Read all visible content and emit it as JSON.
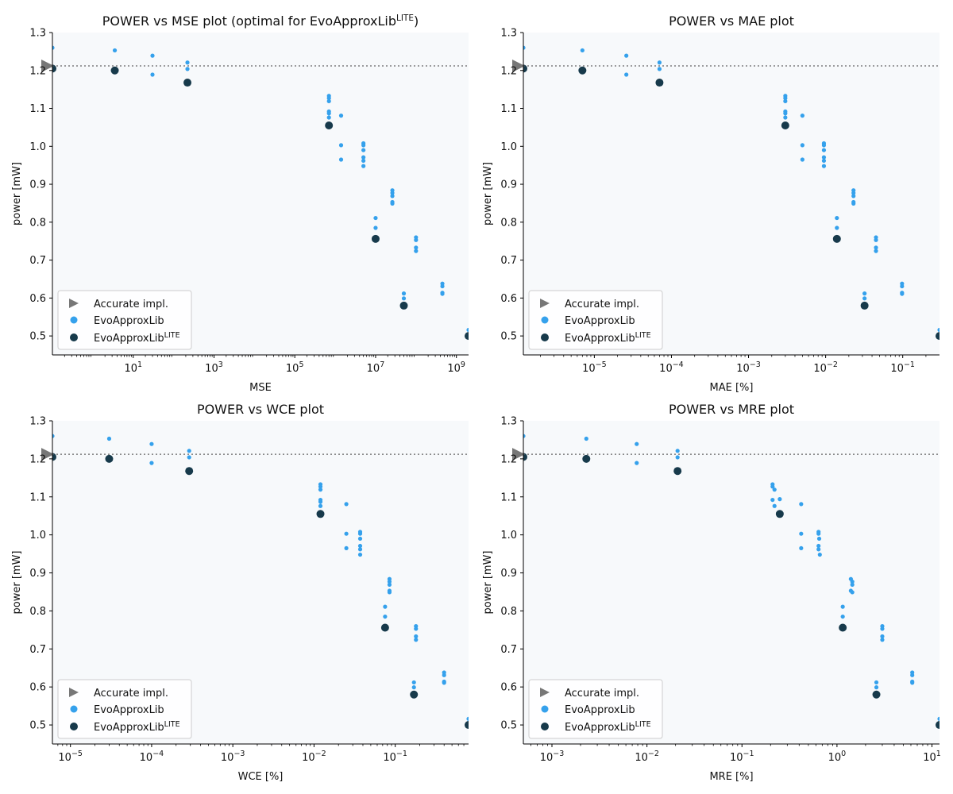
{
  "colors": {
    "panel_bg": "#f7f9fb",
    "evo": "#35a1ec",
    "lite": "#173a4b",
    "accurate": "#777777",
    "ref_line": "#666666",
    "legend_border": "#cccccc"
  },
  "legend": {
    "accurate": "Accurate impl.",
    "evo": "EvoApproxLib",
    "lite_base": "EvoApproxLib",
    "lite_sup": "LITE",
    "placement": "lower-left"
  },
  "chart_data": [
    {
      "type": "scatter",
      "title": "POWER vs MSE plot (optimal for EvoApproxLib",
      "title_sup": "LITE",
      "title_suffix": ")",
      "xlabel": "MSE",
      "ylabel": "power [mW]",
      "xscale": "log",
      "xlim": [
        0.1,
        2000000000.0
      ],
      "ylim": [
        0.45,
        1.3
      ],
      "xticks": [
        {
          "v": 10,
          "e": "1"
        },
        {
          "v": 1000,
          "e": "3"
        },
        {
          "v": 100000,
          "e": "5"
        },
        {
          "v": 10000000,
          "e": "7"
        },
        {
          "v": 1000000000,
          "e": "9"
        }
      ],
      "yticks": [
        {
          "v": 0.5,
          "t": "0.5"
        },
        {
          "v": 0.6,
          "t": "0.6"
        },
        {
          "v": 0.7,
          "t": "0.7"
        },
        {
          "v": 0.8,
          "t": "0.8"
        },
        {
          "v": 0.9,
          "t": "0.9"
        },
        {
          "v": 1.0,
          "t": "1.0"
        },
        {
          "v": 1.1,
          "t": "1.1"
        },
        {
          "v": 1.2,
          "t": "1.2"
        },
        {
          "v": 1.3,
          "t": "1.3"
        }
      ],
      "reference_power": 1.212,
      "accurate": [
        0.1,
        1.212
      ],
      "evo": [
        [
          0.1,
          1.26
        ],
        [
          3.5,
          1.253
        ],
        [
          30,
          1.239
        ],
        [
          30,
          1.189
        ],
        [
          220,
          1.221
        ],
        [
          220,
          1.204
        ],
        [
          700000.0,
          1.133
        ],
        [
          700000.0,
          1.127
        ],
        [
          700000.0,
          1.119
        ],
        [
          700000.0,
          1.092
        ],
        [
          700000.0,
          1.087
        ],
        [
          700000.0,
          1.076
        ],
        [
          1400000.0,
          1.081
        ],
        [
          1400000.0,
          1.003
        ],
        [
          1400000.0,
          0.965
        ],
        [
          5000000.0,
          1.008
        ],
        [
          5000000.0,
          1.003
        ],
        [
          5000000.0,
          0.99
        ],
        [
          5000000.0,
          0.971
        ],
        [
          5000000.0,
          0.962
        ],
        [
          5000000.0,
          0.948
        ],
        [
          26000000.0,
          0.884
        ],
        [
          26000000.0,
          0.877
        ],
        [
          26000000.0,
          0.869
        ],
        [
          26000000.0,
          0.853
        ],
        [
          26000000.0,
          0.849
        ],
        [
          10000000.0,
          0.811
        ],
        [
          10000000.0,
          0.785
        ],
        [
          100000000.0,
          0.76
        ],
        [
          100000000.0,
          0.753
        ],
        [
          100000000.0,
          0.733
        ],
        [
          100000000.0,
          0.724
        ],
        [
          50000000.0,
          0.612
        ],
        [
          50000000.0,
          0.599
        ],
        [
          450000000.0,
          0.638
        ],
        [
          450000000.0,
          0.631
        ],
        [
          450000000.0,
          0.614
        ],
        [
          450000000.0,
          0.611
        ],
        [
          2000000000.0,
          0.516
        ],
        [
          2000000000.0,
          0.503
        ]
      ],
      "lite": [
        [
          0.1,
          1.205
        ],
        [
          3.5,
          1.2
        ],
        [
          220,
          1.168
        ],
        [
          700000.0,
          1.055
        ],
        [
          10000000.0,
          0.756
        ],
        [
          50000000.0,
          0.58
        ],
        [
          2000000000.0,
          0.5
        ]
      ]
    },
    {
      "type": "scatter",
      "title": "POWER vs MAE plot",
      "xlabel": "MAE [%]",
      "ylabel": "power [mW]",
      "xscale": "log",
      "xlim": [
        1.2e-06,
        0.3
      ],
      "ylim": [
        0.45,
        1.3
      ],
      "xticks": [
        {
          "v": 1e-05,
          "e": "−5"
        },
        {
          "v": 0.0001,
          "e": "−4"
        },
        {
          "v": 0.001,
          "e": "−3"
        },
        {
          "v": 0.01,
          "e": "−2"
        },
        {
          "v": 0.1,
          "e": "−1"
        }
      ],
      "yticks": [
        {
          "v": 0.5,
          "t": "0.5"
        },
        {
          "v": 0.6,
          "t": "0.6"
        },
        {
          "v": 0.7,
          "t": "0.7"
        },
        {
          "v": 0.8,
          "t": "0.8"
        },
        {
          "v": 0.9,
          "t": "0.9"
        },
        {
          "v": 1.0,
          "t": "1.0"
        },
        {
          "v": 1.1,
          "t": "1.1"
        },
        {
          "v": 1.2,
          "t": "1.2"
        },
        {
          "v": 1.3,
          "t": "1.3"
        }
      ],
      "reference_power": 1.212,
      "accurate": [
        1.2e-06,
        1.212
      ],
      "evo": [
        [
          1.2e-06,
          1.26
        ],
        [
          7e-06,
          1.253
        ],
        [
          2.6e-05,
          1.239
        ],
        [
          2.6e-05,
          1.189
        ],
        [
          7e-05,
          1.221
        ],
        [
          7e-05,
          1.204
        ],
        [
          0.003,
          1.133
        ],
        [
          0.003,
          1.127
        ],
        [
          0.003,
          1.119
        ],
        [
          0.003,
          1.092
        ],
        [
          0.003,
          1.087
        ],
        [
          0.003,
          1.076
        ],
        [
          0.005,
          1.081
        ],
        [
          0.005,
          1.003
        ],
        [
          0.005,
          0.965
        ],
        [
          0.0095,
          1.008
        ],
        [
          0.0095,
          1.003
        ],
        [
          0.0095,
          0.99
        ],
        [
          0.0095,
          0.971
        ],
        [
          0.0095,
          0.962
        ],
        [
          0.0095,
          0.948
        ],
        [
          0.023,
          0.884
        ],
        [
          0.023,
          0.877
        ],
        [
          0.023,
          0.869
        ],
        [
          0.023,
          0.853
        ],
        [
          0.023,
          0.849
        ],
        [
          0.014,
          0.811
        ],
        [
          0.014,
          0.785
        ],
        [
          0.045,
          0.76
        ],
        [
          0.045,
          0.753
        ],
        [
          0.045,
          0.733
        ],
        [
          0.045,
          0.724
        ],
        [
          0.032,
          0.612
        ],
        [
          0.032,
          0.599
        ],
        [
          0.098,
          0.638
        ],
        [
          0.098,
          0.631
        ],
        [
          0.098,
          0.614
        ],
        [
          0.098,
          0.611
        ],
        [
          0.3,
          0.516
        ],
        [
          0.3,
          0.503
        ]
      ],
      "lite": [
        [
          1.2e-06,
          1.205
        ],
        [
          7e-06,
          1.2
        ],
        [
          7e-05,
          1.168
        ],
        [
          0.003,
          1.055
        ],
        [
          0.014,
          0.756
        ],
        [
          0.032,
          0.58
        ],
        [
          0.3,
          0.5
        ]
      ]
    },
    {
      "type": "scatter",
      "title": "POWER vs WCE plot",
      "xlabel": "WCE [%]",
      "ylabel": "power [mW]",
      "xscale": "log",
      "xlim": [
        6e-06,
        0.8
      ],
      "ylim": [
        0.45,
        1.3
      ],
      "xticks": [
        {
          "v": 1e-05,
          "e": "−5"
        },
        {
          "v": 0.0001,
          "e": "−4"
        },
        {
          "v": 0.001,
          "e": "−3"
        },
        {
          "v": 0.01,
          "e": "−2"
        },
        {
          "v": 0.1,
          "e": "−1"
        }
      ],
      "yticks": [
        {
          "v": 0.5,
          "t": "0.5"
        },
        {
          "v": 0.6,
          "t": "0.6"
        },
        {
          "v": 0.7,
          "t": "0.7"
        },
        {
          "v": 0.8,
          "t": "0.8"
        },
        {
          "v": 0.9,
          "t": "0.9"
        },
        {
          "v": 1.0,
          "t": "1.0"
        },
        {
          "v": 1.1,
          "t": "1.1"
        },
        {
          "v": 1.2,
          "t": "1.2"
        },
        {
          "v": 1.3,
          "t": "1.3"
        }
      ],
      "reference_power": 1.212,
      "accurate": [
        6e-06,
        1.212
      ],
      "evo": [
        [
          6e-06,
          1.26
        ],
        [
          3e-05,
          1.253
        ],
        [
          0.0001,
          1.239
        ],
        [
          0.0001,
          1.189
        ],
        [
          0.00029,
          1.221
        ],
        [
          0.00029,
          1.204
        ],
        [
          0.012,
          1.133
        ],
        [
          0.012,
          1.127
        ],
        [
          0.012,
          1.119
        ],
        [
          0.012,
          1.092
        ],
        [
          0.012,
          1.087
        ],
        [
          0.012,
          1.076
        ],
        [
          0.025,
          1.081
        ],
        [
          0.025,
          1.003
        ],
        [
          0.025,
          0.965
        ],
        [
          0.037,
          1.008
        ],
        [
          0.037,
          1.003
        ],
        [
          0.037,
          0.99
        ],
        [
          0.037,
          0.971
        ],
        [
          0.037,
          0.962
        ],
        [
          0.037,
          0.948
        ],
        [
          0.085,
          0.884
        ],
        [
          0.085,
          0.877
        ],
        [
          0.085,
          0.869
        ],
        [
          0.085,
          0.853
        ],
        [
          0.085,
          0.849
        ],
        [
          0.075,
          0.811
        ],
        [
          0.075,
          0.785
        ],
        [
          0.18,
          0.76
        ],
        [
          0.18,
          0.753
        ],
        [
          0.18,
          0.733
        ],
        [
          0.18,
          0.724
        ],
        [
          0.17,
          0.612
        ],
        [
          0.17,
          0.599
        ],
        [
          0.4,
          0.638
        ],
        [
          0.4,
          0.631
        ],
        [
          0.4,
          0.614
        ],
        [
          0.4,
          0.611
        ],
        [
          0.8,
          0.516
        ],
        [
          0.8,
          0.503
        ]
      ],
      "lite": [
        [
          6e-06,
          1.205
        ],
        [
          3e-05,
          1.2
        ],
        [
          0.00029,
          1.168
        ],
        [
          0.012,
          1.055
        ],
        [
          0.075,
          0.756
        ],
        [
          0.17,
          0.58
        ],
        [
          0.8,
          0.5
        ]
      ]
    },
    {
      "type": "scatter",
      "title": "POWER vs MRE plot",
      "xlabel": "MRE [%]",
      "ylabel": "power [mW]",
      "xscale": "log",
      "xlim": [
        0.0005,
        12
      ],
      "ylim": [
        0.45,
        1.3
      ],
      "xticks": [
        {
          "v": 0.001,
          "e": "−3"
        },
        {
          "v": 0.01,
          "e": "−2"
        },
        {
          "v": 0.1,
          "e": "−1"
        },
        {
          "v": 1,
          "e": "0"
        },
        {
          "v": 10,
          "e": "1"
        }
      ],
      "yticks": [
        {
          "v": 0.5,
          "t": "0.5"
        },
        {
          "v": 0.6,
          "t": "0.6"
        },
        {
          "v": 0.7,
          "t": "0.7"
        },
        {
          "v": 0.8,
          "t": "0.8"
        },
        {
          "v": 0.9,
          "t": "0.9"
        },
        {
          "v": 1.0,
          "t": "1.0"
        },
        {
          "v": 1.1,
          "t": "1.1"
        },
        {
          "v": 1.2,
          "t": "1.2"
        },
        {
          "v": 1.3,
          "t": "1.3"
        }
      ],
      "reference_power": 1.212,
      "accurate": [
        0.0005,
        1.212
      ],
      "evo": [
        [
          0.0005,
          1.26
        ],
        [
          0.0023,
          1.253
        ],
        [
          0.0078,
          1.239
        ],
        [
          0.0078,
          1.189
        ],
        [
          0.021,
          1.221
        ],
        [
          0.021,
          1.204
        ],
        [
          0.21,
          1.133
        ],
        [
          0.21,
          1.127
        ],
        [
          0.22,
          1.119
        ],
        [
          0.21,
          1.092
        ],
        [
          0.25,
          1.094
        ],
        [
          0.22,
          1.076
        ],
        [
          0.42,
          1.081
        ],
        [
          0.42,
          1.003
        ],
        [
          0.42,
          0.965
        ],
        [
          0.64,
          1.008
        ],
        [
          0.64,
          1.003
        ],
        [
          0.65,
          0.99
        ],
        [
          0.64,
          0.971
        ],
        [
          0.64,
          0.962
        ],
        [
          0.66,
          0.948
        ],
        [
          1.4,
          0.884
        ],
        [
          1.45,
          0.877
        ],
        [
          1.45,
          0.869
        ],
        [
          1.4,
          0.853
        ],
        [
          1.45,
          0.849
        ],
        [
          1.15,
          0.811
        ],
        [
          1.15,
          0.785
        ],
        [
          3.0,
          0.76
        ],
        [
          3.0,
          0.753
        ],
        [
          3.0,
          0.733
        ],
        [
          3.0,
          0.724
        ],
        [
          2.6,
          0.612
        ],
        [
          2.6,
          0.599
        ],
        [
          6.2,
          0.638
        ],
        [
          6.2,
          0.631
        ],
        [
          6.2,
          0.614
        ],
        [
          6.2,
          0.611
        ],
        [
          12,
          0.516
        ],
        [
          12,
          0.503
        ]
      ],
      "lite": [
        [
          0.0005,
          1.205
        ],
        [
          0.0023,
          1.2
        ],
        [
          0.021,
          1.168
        ],
        [
          0.25,
          1.055
        ],
        [
          1.15,
          0.756
        ],
        [
          2.6,
          0.58
        ],
        [
          12,
          0.5
        ]
      ]
    }
  ]
}
